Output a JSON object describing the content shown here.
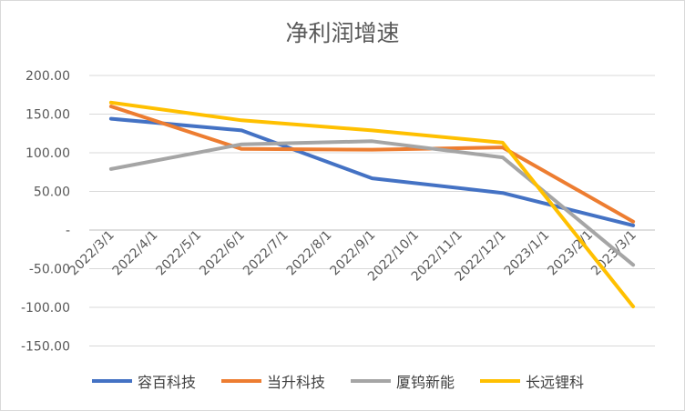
{
  "chart_data": {
    "type": "line",
    "title": "净利润增速",
    "categories": [
      "2022/3/1",
      "2022/4/1",
      "2022/5/1",
      "2022/6/1",
      "2022/7/1",
      "2022/8/1",
      "2022/9/1",
      "2022/10/1",
      "2022/11/1",
      "2022/12/1",
      "2023/1/1",
      "2023/2/1",
      "2023/3/1"
    ],
    "y_ticks": [
      "200.00",
      "150.00",
      "100.00",
      "50.00",
      "-",
      "-50.00",
      "-100.00",
      "-150.00"
    ],
    "ylim": [
      -150,
      200
    ],
    "grid": true,
    "legend_position": "bottom",
    "series": [
      {
        "name": "容百科技",
        "color": "#4472C4",
        "points": [
          [
            0,
            144
          ],
          [
            3,
            129
          ],
          [
            6,
            67
          ],
          [
            9,
            48
          ],
          [
            12,
            6
          ]
        ]
      },
      {
        "name": "当升科技",
        "color": "#ED7D31",
        "points": [
          [
            0,
            160
          ],
          [
            3,
            105
          ],
          [
            6,
            104
          ],
          [
            9,
            107
          ],
          [
            12,
            11
          ]
        ]
      },
      {
        "name": "厦钨新能",
        "color": "#A5A5A5",
        "points": [
          [
            0,
            79
          ],
          [
            3,
            111
          ],
          [
            6,
            115
          ],
          [
            9,
            94
          ],
          [
            12,
            -45
          ]
        ]
      },
      {
        "name": "长远锂科",
        "color": "#FFC000",
        "points": [
          [
            0,
            165
          ],
          [
            3,
            142
          ],
          [
            6,
            129
          ],
          [
            9,
            113
          ],
          [
            12,
            -99
          ]
        ]
      }
    ]
  }
}
